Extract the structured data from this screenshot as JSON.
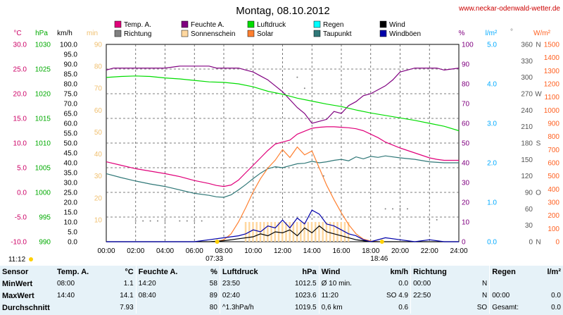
{
  "header": {
    "title": "Montag, 08.10.2012",
    "site": "www.neckar-odenwald-wetter.de"
  },
  "axes_units": {
    "temp": "°C",
    "press_hpa": "hPa",
    "wind_kmh": "km/h",
    "sun_min": "min",
    "humidity": "%",
    "rain": "l/m²",
    "direction": "°",
    "solar": "W/m²"
  },
  "legend": [
    {
      "label": "Temp. A.",
      "color": "#e0007a"
    },
    {
      "label": "Richtung",
      "color": "#808080"
    },
    {
      "label": "Feuchte A.",
      "color": "#800080"
    },
    {
      "label": "Sonnenschein",
      "color": "#ffd8a0"
    },
    {
      "label": "Luftdruck",
      "color": "#00dd00"
    },
    {
      "label": "Solar",
      "color": "#ff8030"
    },
    {
      "label": "Regen",
      "color": "#00ffff"
    },
    {
      "label": "Taupunkt",
      "color": "#307878"
    },
    {
      "label": "Wind",
      "color": "#000000"
    },
    {
      "label": "Windböen",
      "color": "#0000aa"
    }
  ],
  "sun_times": {
    "sunrise": "07:33",
    "sunset": "18:46",
    "daylength": "11:12"
  },
  "chart_data": {
    "type": "line",
    "title": "Montag, 08.10.2012",
    "x_ticks": [
      "00:00",
      "02:00",
      "04:00",
      "06:00",
      "08:00",
      "10:00",
      "12:00",
      "14:00",
      "16:00",
      "18:00",
      "20:00",
      "22:00",
      "24:00"
    ],
    "axis_ticks": {
      "temp": [
        "30.0",
        "25.0",
        "20.0",
        "15.0",
        "10.0",
        "5.0",
        "0.0",
        "-5.0",
        "-10.0"
      ],
      "press": [
        "1030",
        "1025",
        "1020",
        "1015",
        "1010",
        "1005",
        "1000",
        "995",
        "990"
      ],
      "wind": [
        "100.0",
        "95.0",
        "90.0",
        "85.0",
        "80.0",
        "75.0",
        "70.0",
        "65.0",
        "60.0",
        "55.0",
        "50.0",
        "45.0",
        "40.0",
        "35.0",
        "30.0",
        "25.0",
        "20.0",
        "15.0",
        "10.0",
        "5.0",
        "0.0"
      ],
      "sun": [
        "90",
        "80",
        "70",
        "60",
        "50",
        "40",
        "30",
        "20",
        "10"
      ],
      "humidity": [
        "100",
        "90",
        "80",
        "70",
        "60",
        "50",
        "40",
        "30",
        "20",
        "10",
        "0"
      ],
      "rain": [
        "5.0",
        "4.0",
        "3.0",
        "2.0",
        "1.0",
        "0.0"
      ],
      "dir_num": [
        "360",
        "330",
        "300",
        "270",
        "240",
        "210",
        "180",
        "150",
        "120",
        "90",
        "60",
        "30",
        "0"
      ],
      "dir_letter": [
        "N",
        "W",
        "S",
        "O",
        "N"
      ],
      "solar": [
        "1500",
        "1400",
        "1300",
        "1200",
        "1100",
        "1000",
        "900",
        "800",
        "700",
        "600",
        "500",
        "400",
        "300",
        "200",
        "100",
        "0"
      ]
    },
    "ranges": {
      "temp": [
        -10,
        30
      ],
      "press": [
        990,
        1030
      ],
      "humidity": [
        0,
        100
      ],
      "solar": [
        0,
        1500
      ],
      "wind": [
        0,
        100
      ],
      "direction": [
        0,
        360
      ],
      "hours": [
        0,
        24
      ]
    },
    "series": [
      {
        "name": "Temp. A.",
        "axis": "temp",
        "color": "#e0007a",
        "x": [
          0,
          1,
          2,
          3,
          4,
          5,
          6,
          7,
          7.5,
          8,
          8.5,
          9,
          9.5,
          10,
          10.5,
          11,
          11.5,
          12,
          12.5,
          13,
          13.5,
          14,
          14.5,
          15,
          15.5,
          16,
          16.5,
          17,
          17.5,
          18,
          18.5,
          19,
          20,
          21,
          22,
          22.5,
          23,
          24
        ],
        "y": [
          6.2,
          5.5,
          4.8,
          4.3,
          3.8,
          3.2,
          2.4,
          1.8,
          1.4,
          1.2,
          1.5,
          2.5,
          4.0,
          5.5,
          7.0,
          8.5,
          9.8,
          10.2,
          10.6,
          11.8,
          12.4,
          13.0,
          13.2,
          13.3,
          13.3,
          13.2,
          13.1,
          12.9,
          12.5,
          11.8,
          11.1,
          10.2,
          9.0,
          8.0,
          7.0,
          6.7,
          6.5,
          6.5
        ]
      },
      {
        "name": "Taupunkt",
        "axis": "temp",
        "color": "#307878",
        "x": [
          0,
          1,
          2,
          3,
          4,
          5,
          6,
          7,
          7.5,
          8,
          8.5,
          9,
          9.5,
          10,
          10.5,
          11,
          11.5,
          12,
          12.5,
          13,
          13.5,
          14,
          14.5,
          15,
          15.5,
          16,
          16.5,
          17,
          17.5,
          18,
          18.5,
          19,
          20,
          21,
          22,
          23,
          24
        ],
        "y": [
          3.8,
          3.0,
          2.3,
          1.7,
          1.2,
          0.5,
          -0.2,
          -0.6,
          -0.9,
          -1.0,
          -0.5,
          0.5,
          1.6,
          2.8,
          3.9,
          4.8,
          5.2,
          5.0,
          5.4,
          5.8,
          5.9,
          6.3,
          6.0,
          6.2,
          6.5,
          6.7,
          6.4,
          7.2,
          6.8,
          7.3,
          7.1,
          7.4,
          7.0,
          6.7,
          6.2,
          6.0,
          6.0
        ]
      },
      {
        "name": "Feuchte A.",
        "axis": "humidity",
        "color": "#800080",
        "x": [
          0,
          0.5,
          1,
          2,
          3,
          4,
          5,
          6,
          7,
          7.5,
          8,
          9,
          9.5,
          10,
          10.5,
          11,
          11.5,
          12,
          12.5,
          13,
          13.5,
          14,
          14.5,
          15,
          15.5,
          16,
          16.5,
          17,
          17.5,
          18,
          18.5,
          19,
          19.5,
          20,
          21,
          22,
          22.5,
          23,
          24
        ],
        "y": [
          87,
          88,
          88,
          88,
          88,
          88,
          89,
          89,
          89,
          88,
          88,
          88,
          87,
          86,
          84,
          82,
          79,
          76,
          72,
          68,
          65,
          60,
          61,
          62,
          66,
          65,
          69,
          71,
          74,
          75,
          77,
          79,
          82,
          86,
          88,
          88,
          88,
          87,
          88
        ]
      },
      {
        "name": "Luftdruck",
        "axis": "press",
        "color": "#00dd00",
        "x": [
          0,
          1,
          2,
          3,
          4,
          5,
          6,
          7,
          8,
          9,
          10,
          11,
          12,
          13,
          14,
          15,
          16,
          17,
          18,
          19,
          20,
          21,
          22,
          23,
          24
        ],
        "y": [
          1023.3,
          1023.5,
          1023.6,
          1023.5,
          1023.2,
          1023.0,
          1022.7,
          1022.4,
          1022.3,
          1022.0,
          1021.4,
          1020.5,
          1019.9,
          1019.1,
          1018.5,
          1017.9,
          1017.4,
          1016.7,
          1016.1,
          1015.6,
          1015.1,
          1014.6,
          1014.0,
          1013.4,
          1012.5
        ]
      },
      {
        "name": "Solar",
        "axis": "solar",
        "color": "#ff8030",
        "x": [
          7.5,
          8,
          8.5,
          9,
          9.5,
          10,
          10.5,
          11,
          11.5,
          12,
          12.5,
          13,
          13.5,
          14,
          14.5,
          15,
          15.5,
          16,
          16.5,
          17,
          17.5,
          18,
          18.5
        ],
        "y": [
          0,
          15,
          60,
          150,
          260,
          380,
          480,
          560,
          620,
          700,
          640,
          720,
          660,
          690,
          560,
          430,
          320,
          220,
          130,
          60,
          20,
          5,
          0
        ]
      },
      {
        "name": "Wind",
        "axis": "wind",
        "color": "#000000",
        "x": [
          0,
          7,
          8,
          9,
          10,
          10.5,
          11,
          11.5,
          12,
          12.5,
          13,
          13.5,
          14,
          14.5,
          15,
          15.5,
          16,
          16.5,
          17,
          17.5,
          18,
          19,
          24
        ],
        "y": [
          0,
          0,
          0.5,
          1.5,
          2.5,
          4,
          3,
          5,
          4.5,
          6,
          3,
          7,
          4.5,
          8,
          5,
          4,
          3,
          2,
          1,
          0.5,
          0,
          0,
          0
        ]
      },
      {
        "name": "Windböen",
        "axis": "wind",
        "color": "#0000aa",
        "x": [
          0,
          6,
          7,
          8,
          9,
          9.5,
          10,
          10.5,
          11,
          11.5,
          12,
          12.5,
          13,
          13.5,
          14,
          14.5,
          15,
          15.5,
          16,
          16.5,
          17,
          17.5,
          18,
          19,
          20,
          21,
          22,
          23,
          24
        ],
        "y": [
          0,
          0,
          1,
          2,
          3,
          4,
          6,
          5,
          8,
          7,
          11,
          7,
          12,
          9,
          16,
          14,
          9,
          8,
          6,
          4,
          3,
          1,
          0,
          2,
          1,
          0,
          1,
          0,
          0
        ]
      }
    ]
  },
  "stats": {
    "headers": [
      "Sensor",
      "Temp. A.",
      "°C",
      "Feuchte A.",
      "%",
      "Luftdruck",
      "hPa",
      "Wind",
      "km/h",
      "Richtung",
      "",
      "Regen",
      "l/m²"
    ],
    "rows": [
      {
        "label": "MinWert",
        "temp_time": "08:00",
        "temp_val": "1.1",
        "hum_time": "14:20",
        "hum_val": "58",
        "press_time": "23:50",
        "press_val": "1012.5",
        "wind_time": "Ø 10 min.",
        "wind_val": "0.0",
        "dir_time": "00:00",
        "dir_val": "N",
        "rain_time": "",
        "rain_val": ""
      },
      {
        "label": "MaxWert",
        "temp_time": "14:40",
        "temp_val": "14.1",
        "hum_time": "08:40",
        "hum_val": "89",
        "press_time": "02:40",
        "press_val": "1023.6",
        "wind_time": "11:20",
        "wind_val": "SO 4.9",
        "dir_time": "22:50",
        "dir_val": "N",
        "rain_time": "00:00",
        "rain_val": "0.0"
      },
      {
        "label": "Durchschnitt",
        "temp_time": "",
        "temp_val": "7.93",
        "hum_time": "",
        "hum_val": "80",
        "press_time": "^1.3hPa/h",
        "press_val": "1019.5",
        "wind_time": "0,6 km",
        "wind_val": "0.6",
        "dir_time": "",
        "dir_val": "SO",
        "rain_time": "Gesamt:",
        "rain_val": "0.0"
      }
    ]
  }
}
